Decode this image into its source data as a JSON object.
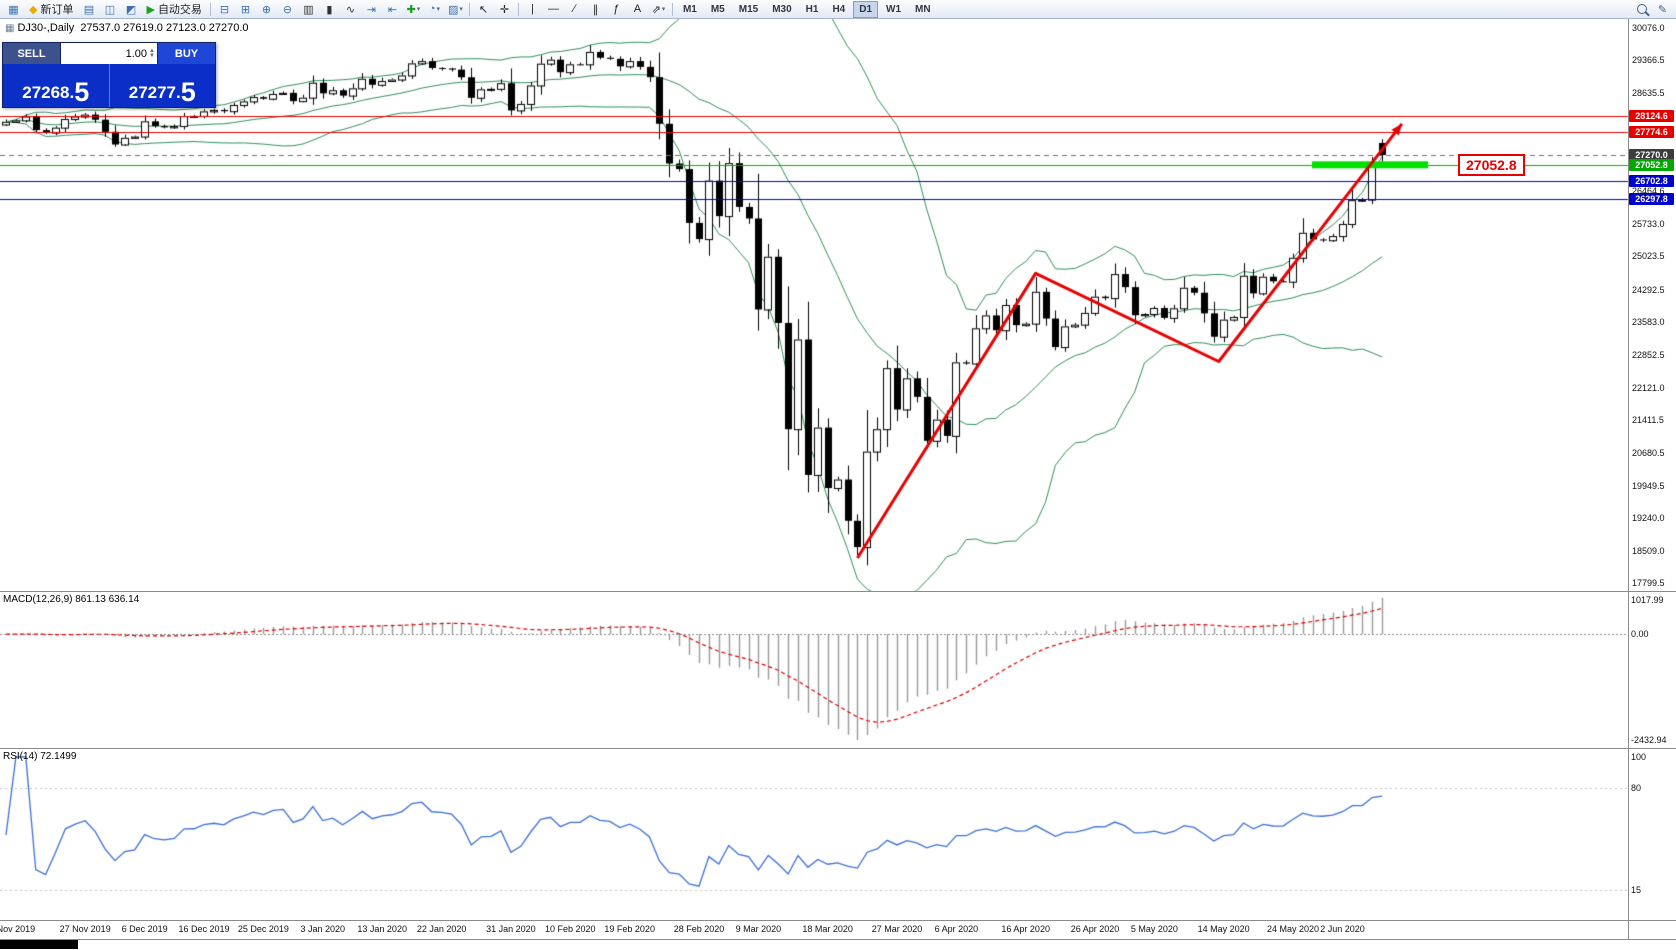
{
  "toolbar": {
    "items": [
      {
        "name": "new-chart-icon",
        "glyph": "▦",
        "color": "#3f6fae"
      },
      {
        "name": "new-order-button",
        "label": "新订单",
        "glyph": "◆",
        "color": "#efaa02"
      },
      {
        "name": "market-watch-icon",
        "glyph": "▤",
        "color": "#3f6fae"
      },
      {
        "name": "data-window-icon",
        "glyph": "◫",
        "color": "#3f6fae"
      },
      {
        "name": "strategy-tester-icon",
        "glyph": "◩",
        "color": "#3f6fae"
      },
      {
        "name": "autotrading-button",
        "label": "自动交易",
        "glyph": "▶",
        "color": "#1aa01a"
      },
      {
        "sep": true
      },
      {
        "name": "tile-horizontal-icon",
        "glyph": "⊟",
        "color": "#3f6fae"
      },
      {
        "name": "tile-vertical-icon",
        "glyph": "⊞",
        "color": "#3f6fae"
      },
      {
        "name": "zoom-in-icon",
        "glyph": "⊕",
        "color": "#3f6fae"
      },
      {
        "name": "zoom-out-icon",
        "glyph": "⊖",
        "color": "#3f6fae"
      },
      {
        "name": "bar-chart-icon",
        "glyph": "▥",
        "color": "#333333"
      },
      {
        "name": "candlestick-chart-icon",
        "glyph": "▮",
        "color": "#333333"
      },
      {
        "name": "line-chart-icon",
        "glyph": "∿",
        "color": "#333333"
      },
      {
        "name": "auto-scroll-icon",
        "glyph": "⇥",
        "color": "#3f6fae"
      },
      {
        "name": "chart-shift-icon",
        "glyph": "⇤",
        "color": "#3f6fae"
      },
      {
        "name": "indicators-icon",
        "glyph": "✚",
        "color": "#18a018",
        "dropdown": true
      },
      {
        "name": "periods-icon",
        "glyph": "◔",
        "color": "#3f6fae",
        "dropdown": true
      },
      {
        "name": "templates-icon",
        "glyph": "▨",
        "color": "#3f6fae",
        "dropdown": true
      },
      {
        "sep": true
      },
      {
        "name": "cursor-icon",
        "glyph": "↖",
        "color": "#222222"
      },
      {
        "name": "crosshair-icon",
        "glyph": "✛",
        "color": "#222222"
      },
      {
        "sep": true
      },
      {
        "name": "vertical-line-icon",
        "glyph": "|",
        "color": "#222222"
      },
      {
        "name": "horizontal-line-icon",
        "glyph": "—",
        "color": "#222222"
      },
      {
        "name": "trendline-icon",
        "glyph": "∕",
        "color": "#222222"
      },
      {
        "name": "equidistant-channel-icon",
        "glyph": "∥",
        "color": "#222222"
      },
      {
        "name": "fibonacci-icon",
        "glyph": "ƒ",
        "color": "#222222"
      },
      {
        "name": "text-label-icon",
        "glyph": "A",
        "color": "#222222"
      },
      {
        "name": "arrows-tool-icon",
        "glyph": "⇗",
        "color": "#222222",
        "dropdown": true
      },
      {
        "sep": true
      }
    ],
    "timeframes": [
      "M1",
      "M5",
      "M15",
      "M30",
      "H1",
      "H4",
      "D1",
      "W1",
      "MN"
    ],
    "active_timeframe": "D1",
    "right_icons": [
      {
        "name": "search-icon",
        "glyph": "css-magnifier"
      },
      {
        "name": "edit-icon",
        "glyph": "✎"
      }
    ]
  },
  "chart_header": {
    "icon": "▦",
    "title": "DJ30-,Daily",
    "ohlc": "27537.0 27619.0 27123.0 27270.0"
  },
  "trade_panel": {
    "sell_label": "SELL",
    "buy_label": "BUY",
    "volume": "1.00",
    "sell_price_main": "27268.",
    "sell_price_big": "5",
    "buy_price_main": "27277.",
    "buy_price_big": "5",
    "colors": {
      "buy_button": "#1f47d6",
      "sell_button": "#3d518c",
      "price_panel": "#0a2ec6"
    }
  },
  "macd_panel": {
    "label": "MACD(12,26,9) 861.13 636.14",
    "main_value": 861.13,
    "signal_value": 636.14,
    "axis_labels": [
      "1017.99",
      "0.00",
      "-2432.94"
    ]
  },
  "rsi_panel": {
    "label": "RSI(14) 72.1499",
    "value": 72.1499,
    "axis_labels": [
      "100",
      "80",
      "15"
    ],
    "levels": [
      80,
      15
    ]
  },
  "chart_data": {
    "type": "candlestick",
    "symbol": "DJ30-",
    "timeframe": "Daily",
    "last_ohlc": {
      "open": 27537.0,
      "high": 27619.0,
      "low": 27123.0,
      "close": 27270.0
    },
    "ylim": [
      17620,
      30280
    ],
    "closes": [
      28005,
      28036,
      28121,
      27821,
      27766,
      27875,
      28066,
      28121,
      28164,
      28051,
      27783,
      27502,
      27650,
      27678,
      28015,
      27910,
      27882,
      27911,
      28132,
      28135,
      28235,
      28267,
      28239,
      28377,
      28455,
      28551,
      28515,
      28621,
      28645,
      28462,
      28538,
      28869,
      28635,
      28703,
      28584,
      28745,
      28957,
      28824,
      28907,
      28939,
      29030,
      29297,
      29348,
      29196,
      29186,
      29160,
      28990,
      28536,
      28723,
      28734,
      28859,
      28256,
      28400,
      28808,
      29291,
      29380,
      29103,
      29277,
      29276,
      29551,
      29423,
      29398,
      29232,
      29348,
      29220,
      28992,
      27961,
      27081,
      26958,
      25767,
      25409,
      26703,
      25917,
      27090,
      26121,
      25865,
      23851,
      25018,
      23553,
      21201,
      23186,
      20189,
      21237,
      19899,
      20087,
      19174,
      18592,
      20705,
      21201,
      22552,
      21637,
      22327,
      21917,
      20944,
      21413,
      21053,
      22680,
      22654,
      23434,
      23719,
      23391,
      23950,
      23504,
      23537,
      24242,
      23650,
      23019,
      23476,
      23515,
      23775,
      24134,
      24102,
      24634,
      24346,
      23724,
      23750,
      23883,
      23665,
      23876,
      24331,
      24222,
      23765,
      23248,
      23626,
      23685,
      24597,
      24207,
      24576,
      24474,
      24465,
      24995,
      25548,
      25401,
      25383,
      25475,
      25743,
      26270,
      26282,
      27111,
      27270
    ],
    "date_labels": [
      [
        "Nov 2019",
        1
      ],
      [
        "27 Nov 2019",
        8
      ],
      [
        "6 Dec 2019",
        14
      ],
      [
        "16 Dec 2019",
        20
      ],
      [
        "25 Dec 2019",
        26
      ],
      [
        "3 Jan 2020",
        32
      ],
      [
        "13 Jan 2020",
        38
      ],
      [
        "22 Jan 2020",
        44
      ],
      [
        "31 Jan 2020",
        51
      ],
      [
        "10 Feb 2020",
        57
      ],
      [
        "19 Feb 2020",
        63
      ],
      [
        "28 Feb 2020",
        70
      ],
      [
        "9 Mar 2020",
        76
      ],
      [
        "18 Mar 2020",
        83
      ],
      [
        "27 Mar 2020",
        90
      ],
      [
        "6 Apr 2020",
        96
      ],
      [
        "16 Apr 2020",
        103
      ],
      [
        "26 Apr 2020",
        110
      ],
      [
        "5 May 2020",
        116
      ],
      [
        "14 May 2020",
        123
      ],
      [
        "24 May 2020",
        130
      ],
      [
        "2 Jun 2020",
        135
      ]
    ],
    "indicators": {
      "bollinger_period": 20,
      "bollinger_dev": 2,
      "macd": [
        12,
        26,
        9
      ],
      "rsi_period": 14
    },
    "y_ticks": [
      30076.0,
      29366.5,
      28635.5,
      26464.6,
      25733.0,
      25023.5,
      24292.5,
      23583.0,
      22852.5,
      22121.0,
      21411.5,
      20680.5,
      19949.5,
      19240.0,
      18509.0,
      17799.5
    ],
    "overlays": {
      "hlines": [
        {
          "price": 28124.6,
          "color": "#e60000",
          "style": "solid",
          "badge": "28124.6",
          "badge_bg": "#e60000"
        },
        {
          "price": 27774.6,
          "color": "#e60000",
          "style": "solid",
          "badge": "27774.6",
          "badge_bg": "#e60000"
        },
        {
          "price": 27270.0,
          "color": "#707070",
          "style": "dash",
          "badge": "27270.0",
          "badge_bg": "#3c3c3c"
        },
        {
          "price": 27052.8,
          "color": "#00b000",
          "style": "solid",
          "badge": "27052.8",
          "badge_bg": "#00a800"
        },
        {
          "price": 26702.8,
          "color": "#0000d8",
          "style": "solid",
          "badge": "26702.8",
          "badge_bg": "#0000cc"
        },
        {
          "price": 26297.8,
          "color": "#0000d8",
          "style": "solid",
          "badge": "26297.8",
          "badge_bg": "#0000cc"
        }
      ],
      "highlight_bar": {
        "price": 27052.8,
        "x_start": 1312,
        "x_end": 1428,
        "height": 7,
        "color": "#00e000"
      },
      "price_flag": {
        "label": "27052.8",
        "price": 27052.8,
        "x": 1458,
        "color": "#e60000"
      },
      "trend_arrows": {
        "color": "#e60000",
        "width": 3,
        "points": [
          [
            86,
            18350
          ],
          [
            104,
            24650
          ],
          [
            122.5,
            22700
          ],
          [
            141,
            27960
          ]
        ]
      }
    }
  }
}
